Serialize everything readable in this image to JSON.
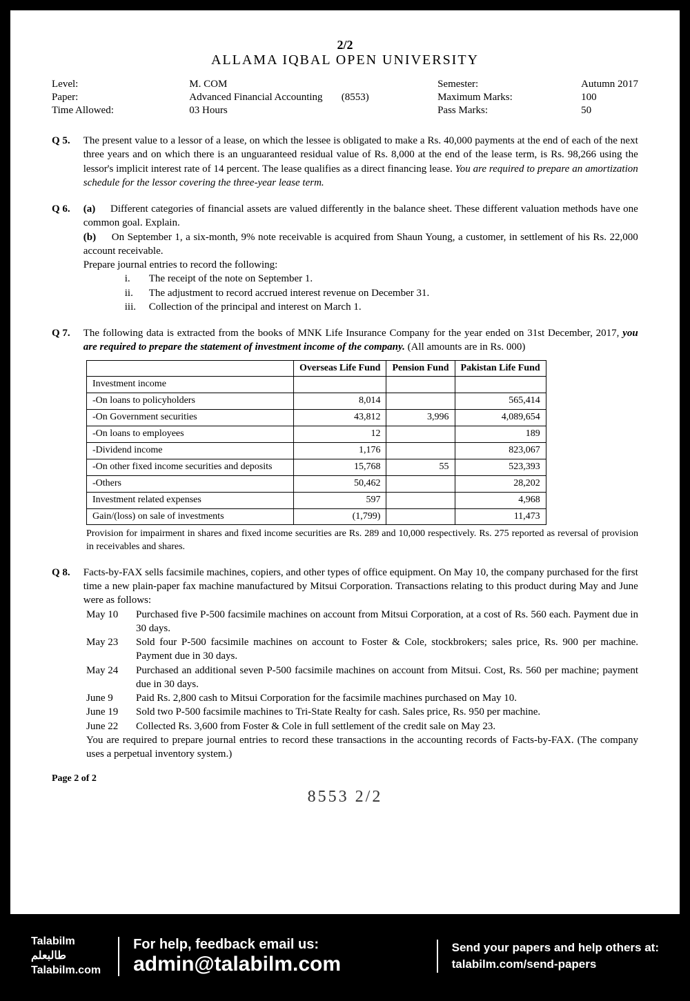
{
  "header": {
    "page_number": "2/2",
    "university": "ALLAMA IQBAL OPEN UNIVERSITY"
  },
  "meta": {
    "level_label": "Level:",
    "level_value": "M. COM",
    "paper_label": "Paper:",
    "paper_value": "Advanced Financial Accounting",
    "paper_code": "(8553)",
    "time_label": "Time Allowed:",
    "time_value": "03 Hours",
    "semester_label": "Semester:",
    "semester_value": "Autumn 2017",
    "max_marks_label": "Maximum Marks:",
    "max_marks_value": "100",
    "pass_marks_label": "Pass Marks:",
    "pass_marks_value": "50"
  },
  "q5": {
    "label": "Q 5.",
    "text": "The present value to a lessor of a lease, on which the lessee is obligated to make a Rs. 40,000 payments at the end of each of the next three years and on which there is an unguaranteed residual value of Rs. 8,000 at the end of the lease term, is Rs. 98,266 using the lessor's implicit interest rate of 14 percent. The lease qualifies as a direct financing lease.",
    "req": "You are required to prepare an amortization schedule for the lessor covering the three-year lease term."
  },
  "q6": {
    "label": "Q 6.",
    "a_label": "(a)",
    "a_text": "Different categories of financial assets are valued differently in the balance sheet. These different valuation methods have one common goal. Explain.",
    "b_label": "(b)",
    "b_text": "On September 1, a six-month, 9% note receivable is acquired from Shaun Young, a customer, in settlement of his Rs. 22,000 account receivable.",
    "prepare": "Prepare journal entries to record the following:",
    "i_num": "i.",
    "i_text": "The receipt of the note on September 1.",
    "ii_num": "ii.",
    "ii_text": "The adjustment to record accrued interest revenue on December 31.",
    "iii_num": "iii.",
    "iii_text": "Collection of the principal and interest on March 1."
  },
  "q7": {
    "label": "Q 7.",
    "text": "The following data is extracted from the books of MNK Life Insurance Company for the year ended on 31st December, 2017,",
    "req": "you are required to prepare the statement of investment income of the company.",
    "note": "(All amounts are in Rs. 000)",
    "col1": "Overseas Life Fund",
    "col2": "Pension Fund",
    "col3": "Pakistan Life Fund",
    "rows": [
      {
        "label": "Investment income",
        "c1": "",
        "c2": "",
        "c3": ""
      },
      {
        "label": "-On loans to policyholders",
        "c1": "8,014",
        "c2": "",
        "c3": "565,414"
      },
      {
        "label": "-On Government securities",
        "c1": "43,812",
        "c2": "3,996",
        "c3": "4,089,654"
      },
      {
        "label": "-On loans to employees",
        "c1": "12",
        "c2": "",
        "c3": "189"
      },
      {
        "label": "-Dividend income",
        "c1": "1,176",
        "c2": "",
        "c3": "823,067"
      },
      {
        "label": "-On other fixed income securities and deposits",
        "c1": "15,768",
        "c2": "55",
        "c3": "523,393"
      },
      {
        "label": "-Others",
        "c1": "50,462",
        "c2": "",
        "c3": "28,202"
      },
      {
        "label": "Investment related expenses",
        "c1": "597",
        "c2": "",
        "c3": "4,968"
      },
      {
        "label": "Gain/(loss)  on sale of investments",
        "c1": "(1,799)",
        "c2": "",
        "c3": "11,473"
      }
    ],
    "after_table": "Provision for impairment in shares and fixed income securities are Rs. 289 and 10,000 respectively. Rs. 275 reported as reversal of provision in receivables and shares."
  },
  "q8": {
    "label": "Q 8.",
    "intro": "Facts-by-FAX sells facsimile machines, copiers, and other types of office equipment. On May 10, the company purchased for the first time a new plain-paper fax machine manufactured by Mitsui Corporation. Transactions relating to this product during May and June were as follows:",
    "tx": [
      {
        "date": "May 10",
        "text": "Purchased five P-500 facsimile machines on account from Mitsui Corporation, at a cost of Rs. 560 each. Payment due in 30 days."
      },
      {
        "date": "May 23",
        "text": "Sold four P-500 facsimile machines on account to Foster & Cole, stockbrokers; sales price, Rs. 900 per machine. Payment due in 30 days."
      },
      {
        "date": "May 24",
        "text": "Purchased an additional seven P-500 facsimile machines on account from Mitsui. Cost, Rs. 560 per machine; payment due in 30 days."
      },
      {
        "date": "June  9",
        "text": "Paid Rs. 2,800 cash to Mitsui Corporation for the facsimile machines purchased on May 10."
      },
      {
        "date": "June 19",
        "text": "Sold two P-500 facsimile machines to Tri-State Realty for cash. Sales price, Rs. 950 per machine."
      },
      {
        "date": "June 22",
        "text": "Collected Rs. 3,600 from Foster & Cole in full settlement of the credit sale on May 23."
      }
    ],
    "req": "You are required to prepare journal entries to record these transactions in the accounting records of Facts-by-FAX. (The company uses a perpetual inventory system.)"
  },
  "page_footer": "Page 2 of 2",
  "handwritten": "8553   2/2",
  "banner": {
    "brand1": "Talabilm",
    "brand2": "طالبعلم",
    "brand3": "Talabilm.com",
    "help1": "For help, feedback email us:",
    "help2": "admin@talabilm.com",
    "send1": "Send your papers and help others at:",
    "send2": "talabilm.com/send-papers"
  }
}
